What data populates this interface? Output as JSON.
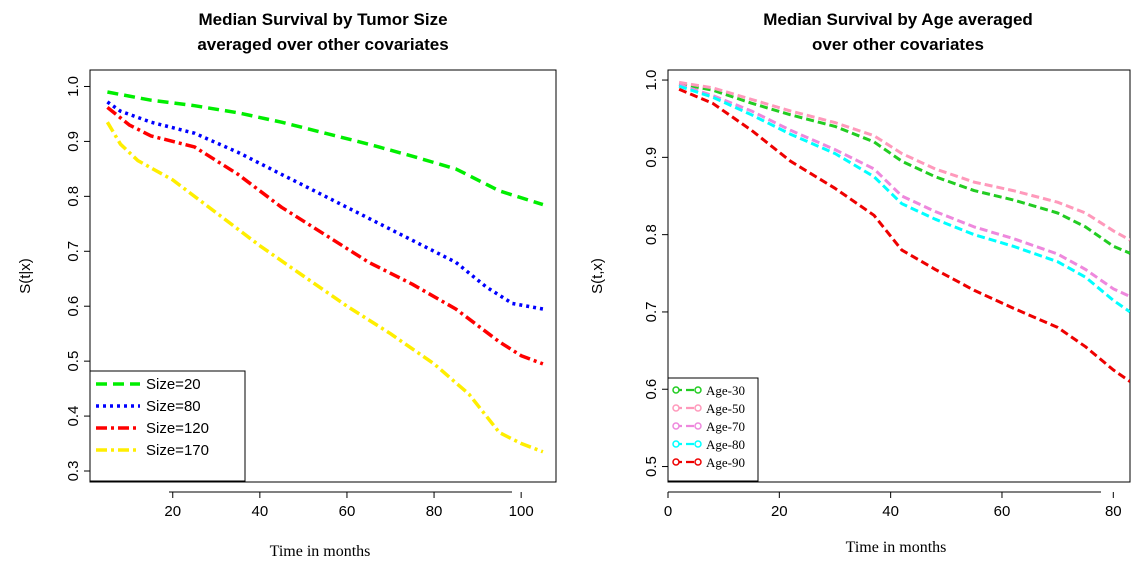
{
  "chart_data": [
    {
      "type": "line",
      "title_lines": [
        "Median Survival by Tumor Size",
        "averaged over other covariates"
      ],
      "xlabel": "Time in months",
      "ylabel": "S(t|x)",
      "xticks": [
        20,
        40,
        60,
        80,
        100
      ],
      "yticks": [
        0.3,
        0.4,
        0.5,
        0.6,
        0.7,
        0.8,
        0.9,
        1.0
      ],
      "ytick_labels": [
        "0.3",
        "0.4",
        "0.5",
        "0.6",
        "0.7",
        "0.8",
        "0.9",
        "1.0"
      ],
      "xlim": [
        1,
        108
      ],
      "ylim": [
        0.28,
        1.03
      ],
      "legend_position": "bottom-left",
      "series": [
        {
          "name": "Size=20",
          "color": "#00ee00",
          "dash": "long",
          "points": [
            [
              5,
              0.99
            ],
            [
              15,
              0.975
            ],
            [
              25,
              0.965
            ],
            [
              35,
              0.952
            ],
            [
              45,
              0.935
            ],
            [
              55,
              0.915
            ],
            [
              65,
              0.895
            ],
            [
              75,
              0.873
            ],
            [
              85,
              0.85
            ],
            [
              95,
              0.81
            ],
            [
              105,
              0.785
            ]
          ]
        },
        {
          "name": "Size=80",
          "color": "#0000ff",
          "dash": "dot",
          "points": [
            [
              5,
              0.972
            ],
            [
              8,
              0.955
            ],
            [
              15,
              0.935
            ],
            [
              25,
              0.915
            ],
            [
              35,
              0.88
            ],
            [
              45,
              0.84
            ],
            [
              55,
              0.8
            ],
            [
              65,
              0.76
            ],
            [
              75,
              0.72
            ],
            [
              85,
              0.68
            ],
            [
              92,
              0.635
            ],
            [
              98,
              0.605
            ],
            [
              105,
              0.595
            ]
          ]
        },
        {
          "name": "Size=120",
          "color": "#ff0000",
          "dash": "dashdot",
          "points": [
            [
              5,
              0.962
            ],
            [
              10,
              0.93
            ],
            [
              15,
              0.91
            ],
            [
              25,
              0.89
            ],
            [
              35,
              0.84
            ],
            [
              45,
              0.78
            ],
            [
              55,
              0.73
            ],
            [
              65,
              0.68
            ],
            [
              75,
              0.64
            ],
            [
              85,
              0.595
            ],
            [
              95,
              0.535
            ],
            [
              100,
              0.51
            ],
            [
              105,
              0.495
            ]
          ]
        },
        {
          "name": "Size=170",
          "color": "#ffee00",
          "dash": "dashdot",
          "points": [
            [
              5,
              0.935
            ],
            [
              8,
              0.895
            ],
            [
              12,
              0.865
            ],
            [
              20,
              0.83
            ],
            [
              30,
              0.77
            ],
            [
              40,
              0.71
            ],
            [
              50,
              0.655
            ],
            [
              60,
              0.6
            ],
            [
              70,
              0.55
            ],
            [
              80,
              0.495
            ],
            [
              88,
              0.44
            ],
            [
              95,
              0.37
            ],
            [
              100,
              0.35
            ],
            [
              105,
              0.335
            ]
          ]
        }
      ]
    },
    {
      "type": "line",
      "title_lines": [
        "Median Survival by Age averaged",
        "over other covariates"
      ],
      "xlabel": "Time in months",
      "ylabel": "S(t,x)",
      "xticks": [
        0,
        20,
        40,
        60,
        80
      ],
      "yticks": [
        0.5,
        0.6,
        0.7,
        0.8,
        0.9,
        1.0
      ],
      "ytick_labels": [
        "0.5",
        "0.6",
        "0.7",
        "0.8",
        "0.9",
        "1.0"
      ],
      "xlim": [
        0,
        83
      ],
      "ylim": [
        0.48,
        1.013
      ],
      "legend_position": "bottom-left",
      "series": [
        {
          "name": "Age-30",
          "color": "#22cc22",
          "dash": "dash",
          "points": [
            [
              2,
              0.995
            ],
            [
              8,
              0.987
            ],
            [
              15,
              0.97
            ],
            [
              22,
              0.955
            ],
            [
              30,
              0.94
            ],
            [
              37,
              0.92
            ],
            [
              42,
              0.895
            ],
            [
              48,
              0.875
            ],
            [
              55,
              0.857
            ],
            [
              62,
              0.845
            ],
            [
              70,
              0.828
            ],
            [
              75,
              0.81
            ],
            [
              80,
              0.785
            ],
            [
              83,
              0.776
            ]
          ]
        },
        {
          "name": "Age-50",
          "color": "#ff99bb",
          "dash": "dash",
          "points": [
            [
              2,
              0.997
            ],
            [
              8,
              0.99
            ],
            [
              15,
              0.975
            ],
            [
              22,
              0.96
            ],
            [
              30,
              0.945
            ],
            [
              37,
              0.928
            ],
            [
              42,
              0.905
            ],
            [
              48,
              0.885
            ],
            [
              55,
              0.868
            ],
            [
              62,
              0.857
            ],
            [
              70,
              0.842
            ],
            [
              75,
              0.828
            ],
            [
              80,
              0.805
            ],
            [
              83,
              0.793
            ]
          ]
        },
        {
          "name": "Age-70",
          "color": "#ee88dd",
          "dash": "dash",
          "points": [
            [
              2,
              0.994
            ],
            [
              8,
              0.98
            ],
            [
              15,
              0.96
            ],
            [
              22,
              0.935
            ],
            [
              30,
              0.91
            ],
            [
              37,
              0.885
            ],
            [
              42,
              0.85
            ],
            [
              48,
              0.83
            ],
            [
              55,
              0.81
            ],
            [
              62,
              0.795
            ],
            [
              70,
              0.775
            ],
            [
              75,
              0.755
            ],
            [
              80,
              0.73
            ],
            [
              83,
              0.72
            ]
          ]
        },
        {
          "name": "Age-80",
          "color": "#00ffff",
          "dash": "dash",
          "points": [
            [
              2,
              0.992
            ],
            [
              8,
              0.978
            ],
            [
              15,
              0.955
            ],
            [
              22,
              0.93
            ],
            [
              30,
              0.905
            ],
            [
              37,
              0.875
            ],
            [
              42,
              0.84
            ],
            [
              48,
              0.82
            ],
            [
              55,
              0.8
            ],
            [
              62,
              0.785
            ],
            [
              70,
              0.765
            ],
            [
              75,
              0.745
            ],
            [
              80,
              0.715
            ],
            [
              83,
              0.7
            ]
          ]
        },
        {
          "name": "Age-90",
          "color": "#ee0000",
          "dash": "dash",
          "points": [
            [
              2,
              0.988
            ],
            [
              8,
              0.97
            ],
            [
              15,
              0.935
            ],
            [
              22,
              0.895
            ],
            [
              30,
              0.86
            ],
            [
              37,
              0.825
            ],
            [
              42,
              0.78
            ],
            [
              48,
              0.755
            ],
            [
              55,
              0.728
            ],
            [
              62,
              0.705
            ],
            [
              70,
              0.68
            ],
            [
              75,
              0.655
            ],
            [
              80,
              0.625
            ],
            [
              83,
              0.61
            ]
          ]
        }
      ]
    }
  ]
}
